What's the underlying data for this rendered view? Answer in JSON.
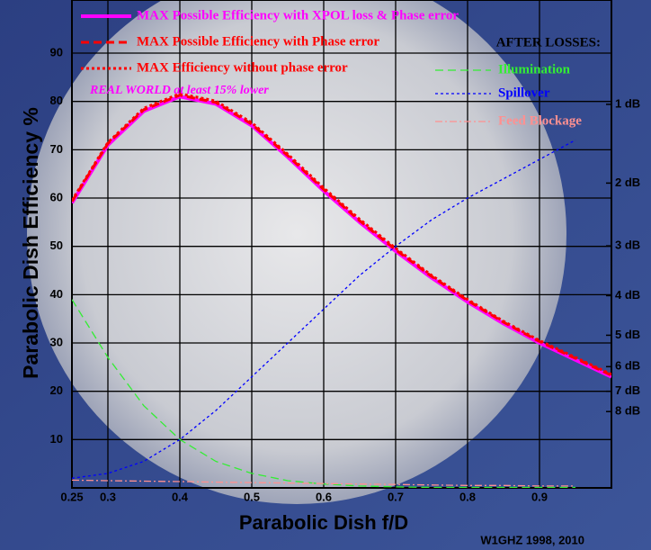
{
  "chart_data": {
    "type": "line",
    "xlabel": "Parabolic Dish f/D",
    "ylabel": "Parabolic Dish Efficiency %",
    "annotation": "REAL WORLD at least 15% lower",
    "legend_header": "AFTER LOSSES:",
    "credit": "W1GHZ 1998, 2010",
    "x": [
      0.25,
      0.3,
      0.35,
      0.4,
      0.45,
      0.5,
      0.55,
      0.6,
      0.65,
      0.7,
      0.75,
      0.8,
      0.85,
      0.9,
      0.95,
      1.0
    ],
    "xlim": [
      0.25,
      1.0
    ],
    "xticks": [
      0.25,
      0.3,
      0.4,
      0.5,
      0.6,
      0.7,
      0.8,
      0.9
    ],
    "ylim": [
      0,
      101
    ],
    "yticks": [
      10,
      20,
      30,
      40,
      50,
      60,
      70,
      80,
      90
    ],
    "y2lim": [
      0,
      101
    ],
    "y2ticks": [
      {
        "value": 79.4,
        "label": "1 dB"
      },
      {
        "value": 63.1,
        "label": "2 dB"
      },
      {
        "value": 50.1,
        "label": "3 dB"
      },
      {
        "value": 39.8,
        "label": "4 dB"
      },
      {
        "value": 31.6,
        "label": "5 dB"
      },
      {
        "value": 25.1,
        "label": "6 dB"
      },
      {
        "value": 20.0,
        "label": "7 dB"
      },
      {
        "value": 15.8,
        "label": "8 dB"
      }
    ],
    "grid": true,
    "series": [
      {
        "name": "MAX Possible Efficiency with XPOL loss & Phase error",
        "color": "#ff00ff",
        "dash": "solid",
        "width": 4,
        "values": [
          59,
          71,
          78,
          81,
          79.5,
          75,
          68.5,
          61.5,
          55,
          49,
          43.5,
          38.5,
          34,
          30,
          26.5,
          23
        ]
      },
      {
        "name": "MAX Possible Efficiency with Phase error",
        "color": "#ff0000",
        "dash": "dashed",
        "width": 3,
        "values": [
          59.3,
          71.3,
          78.3,
          81.3,
          79.8,
          75.3,
          68.8,
          61.8,
          55.3,
          49.3,
          43.8,
          38.8,
          34.3,
          30.3,
          26.8,
          23.3
        ]
      },
      {
        "name": "MAX Efficiency without phase error",
        "color": "#ff0000",
        "dash": "dotted",
        "width": 3,
        "values": [
          59.5,
          71.5,
          78.6,
          81.6,
          80.1,
          75.6,
          69.1,
          62.1,
          55.6,
          49.6,
          44,
          39,
          34.5,
          30.5,
          27,
          23.5
        ]
      },
      {
        "name": "Illumination",
        "color": "#33ee33",
        "dash": "dashed",
        "width": 1.3,
        "values": [
          39,
          27,
          17,
          10,
          5.5,
          3,
          1.5,
          0.8,
          0.4,
          0.2,
          0.1,
          0.1,
          0.1,
          0.1,
          0.1,
          null
        ]
      },
      {
        "name": "Spillover",
        "color": "#0000ff",
        "dash": "dotted",
        "width": 1.3,
        "values": [
          2,
          3,
          5.5,
          10,
          16,
          23,
          30,
          37,
          44,
          50,
          55.5,
          60,
          64,
          68,
          72,
          null
        ]
      },
      {
        "name": "Feed Blockage",
        "color": "#ff9090",
        "dash": "dashdot",
        "width": 1.3,
        "values": [
          1.6,
          1.5,
          1.4,
          1.3,
          1.2,
          1.1,
          1.0,
          0.9,
          0.8,
          0.7,
          0.6,
          0.5,
          0.5,
          0.4,
          0.4,
          null
        ]
      }
    ]
  }
}
